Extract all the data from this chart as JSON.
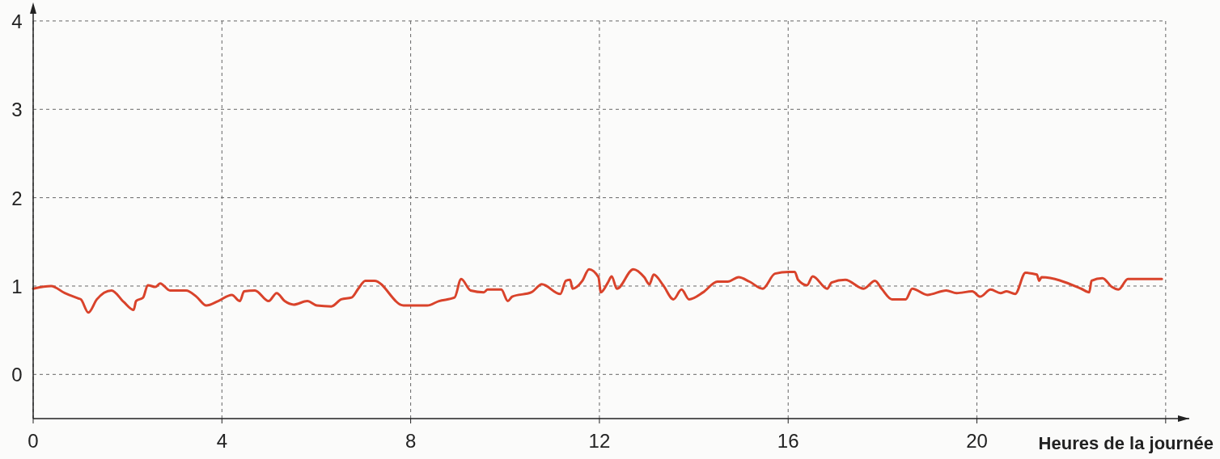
{
  "chart_data": {
    "type": "line",
    "xlabel": "Heures de la journée",
    "xlim": [
      0,
      24.5
    ],
    "ylim": [
      -0.5,
      4.1
    ],
    "xticks": [
      0,
      4,
      8,
      12,
      16,
      20,
      {
        "value": 24,
        "label": null
      }
    ],
    "yticks": [
      0,
      1,
      2,
      3,
      4
    ],
    "grid": true,
    "marker": "none",
    "line_style": "solid",
    "series": [
      {
        "color": "#d9432b",
        "x": [
          0,
          0.38,
          0.67,
          0.96,
          1.01,
          1.17,
          1.35,
          1.66,
          1.92,
          2.13,
          2.18,
          2.33,
          2.43,
          2.59,
          2.69,
          2.9,
          3.24,
          3.46,
          3.67,
          3.92,
          4.21,
          4.38,
          4.47,
          4.7,
          4.99,
          5.16,
          5.33,
          5.52,
          5.81,
          6.01,
          6.32,
          6.53,
          6.75,
          6.89,
          7.04,
          7.23,
          7.85,
          8.35,
          8.6,
          8.93,
          9.07,
          9.27,
          9.55,
          9.63,
          9.92,
          10.06,
          10.15,
          10.56,
          10.78,
          11.17,
          11.29,
          11.38,
          11.43,
          11.64,
          11.78,
          11.98,
          12.03,
          12.18,
          12.26,
          12.37,
          12.72,
          12.95,
          13.06,
          13.15,
          13.35,
          13.57,
          13.74,
          13.9,
          14.2,
          14.5,
          14.72,
          14.95,
          15.18,
          15.46,
          15.72,
          16.01,
          16.14,
          16.21,
          16.4,
          16.52,
          16.83,
          16.92,
          17.21,
          17.6,
          17.84,
          17.98,
          18.2,
          18.49,
          18.63,
          18.95,
          19.35,
          19.57,
          19.9,
          20.07,
          20.29,
          20.5,
          20.63,
          20.81,
          21.03,
          21.27,
          21.32,
          21.37,
          22.21,
          22.38,
          22.43,
          22.66,
          22.86,
          23.0,
          23.2,
          23.92
        ],
        "values": [
          0.97,
          1.0,
          0.92,
          0.86,
          0.85,
          0.7,
          0.85,
          0.95,
          0.82,
          0.73,
          0.83,
          0.87,
          1.01,
          0.99,
          1.03,
          0.95,
          0.95,
          0.88,
          0.78,
          0.83,
          0.9,
          0.83,
          0.94,
          0.95,
          0.83,
          0.92,
          0.83,
          0.79,
          0.83,
          0.78,
          0.77,
          0.85,
          0.87,
          0.97,
          1.06,
          1.06,
          0.78,
          0.78,
          0.83,
          0.87,
          1.08,
          0.95,
          0.93,
          0.96,
          0.96,
          0.83,
          0.88,
          0.93,
          1.02,
          0.91,
          1.06,
          1.07,
          0.97,
          1.06,
          1.19,
          1.1,
          0.93,
          1.04,
          1.11,
          0.97,
          1.19,
          1.1,
          1.02,
          1.13,
          1.01,
          0.85,
          0.96,
          0.85,
          0.93,
          1.05,
          1.05,
          1.1,
          1.05,
          0.97,
          1.14,
          1.16,
          1.16,
          1.07,
          1.01,
          1.11,
          0.97,
          1.04,
          1.07,
          0.97,
          1.06,
          0.97,
          0.85,
          0.85,
          0.97,
          0.9,
          0.95,
          0.92,
          0.94,
          0.88,
          0.96,
          0.92,
          0.94,
          0.91,
          1.15,
          1.13,
          1.06,
          1.1,
          0.97,
          0.93,
          1.06,
          1.09,
          0.99,
          0.96,
          1.08,
          1.08
        ]
      }
    ]
  }
}
